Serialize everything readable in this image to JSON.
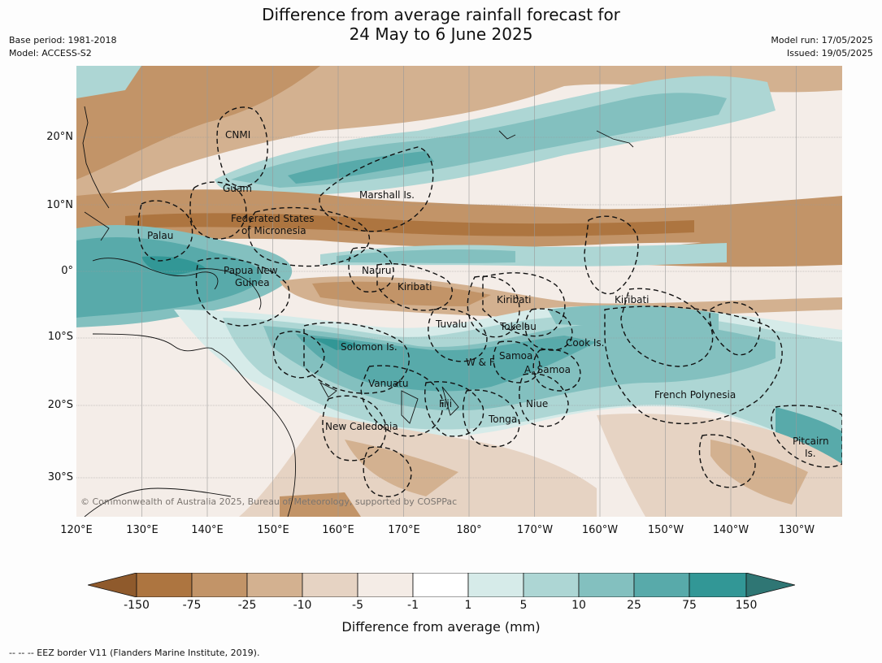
{
  "title": {
    "line1": "Difference from average rainfall forecast for",
    "line2": "24 May to 6 June 2025"
  },
  "meta_left": {
    "base_period": "Base period: 1981-2018",
    "model": "Model: ACCESS-S2"
  },
  "meta_right": {
    "model_run": "Model run: 17/05/2025",
    "issued": "Issued: 19/05/2025"
  },
  "axes": {
    "lat_labels": [
      "20°N",
      "10°N",
      "0°",
      "10°S",
      "20°S",
      "30°S"
    ],
    "lon_labels": [
      "120°E",
      "130°E",
      "140°E",
      "150°E",
      "160°E",
      "170°E",
      "180°",
      "170°W",
      "160°W",
      "150°W",
      "140°W",
      "130°W"
    ]
  },
  "places": [
    "CNMI",
    "Guam",
    "Marshall Is.",
    "Federated States",
    "of Micronesia",
    "Palau",
    "Nauru",
    "Papua New",
    "Guinea",
    "Kiribati",
    "Kiribati",
    "Kiribati",
    "Tuvalu",
    "Tokelau",
    "Cook Is.",
    "Solomon Is.",
    "W & F",
    "Samoa",
    "A. Samoa",
    "Vanuatu",
    "Fiji",
    "Niue",
    "Tonga",
    "French Polynesia",
    "New Caledonia",
    "Pitcairn",
    "Is."
  ],
  "copyright": "© Commonwealth of Australia 2025, Bureau of Meteorology, supported by COSPPac",
  "colorbar": {
    "labels": [
      "-150",
      "-75",
      "-25",
      "-10",
      "-5",
      "-1",
      "1",
      "5",
      "10",
      "25",
      "75",
      "150"
    ],
    "colors": [
      "#8f5a2c",
      "#ad7540",
      "#c29468",
      "#d3b190",
      "#e6d3c3",
      "#f4ece6",
      "#ffffff",
      "#d6ebe9",
      "#add6d4",
      "#83c0bf",
      "#58aaaa",
      "#329796",
      "#2f7674"
    ],
    "title": "Difference from average (mm)"
  },
  "footnote": "--  --  -- EEZ border V11 (Flanders Marine Institute, 2019)."
}
